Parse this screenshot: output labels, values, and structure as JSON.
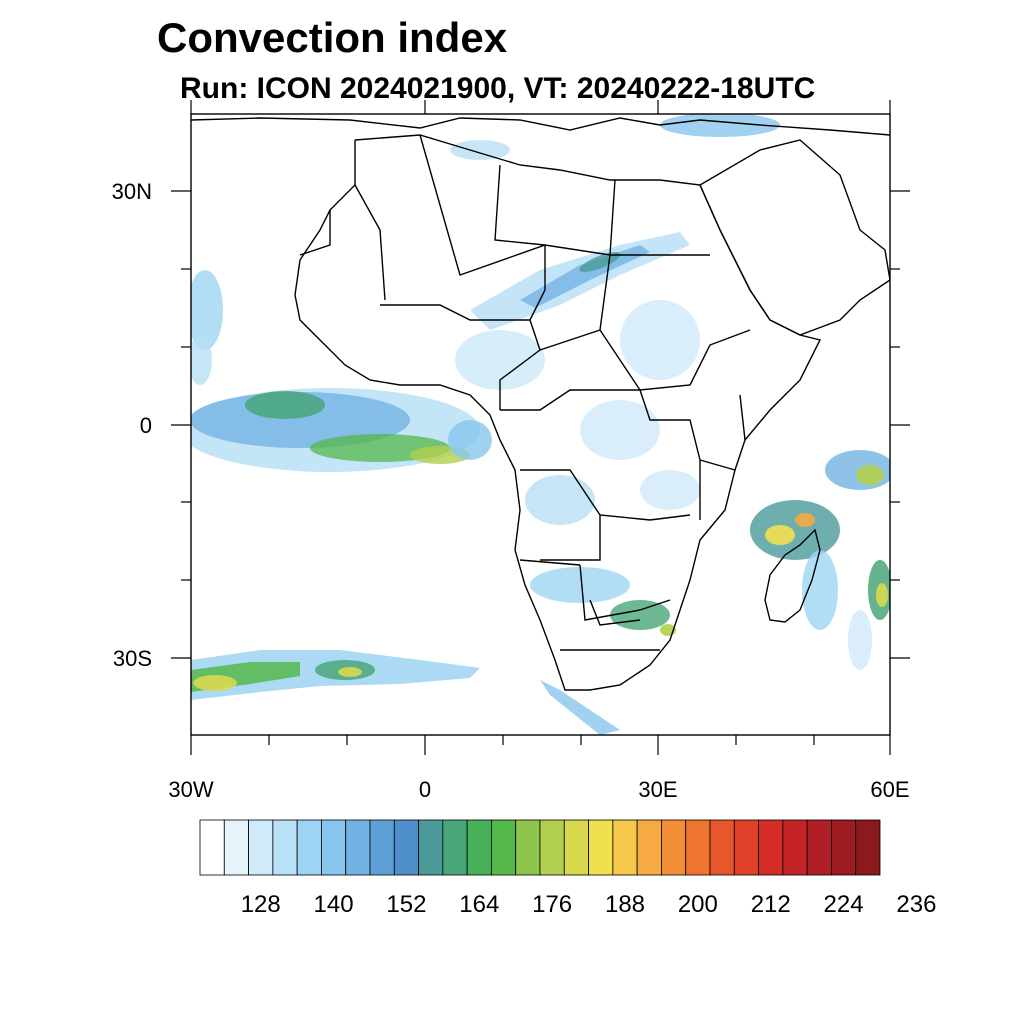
{
  "figure": {
    "title": "Convection index",
    "subtitle": "Run: ICON 2024021900,  VT: 20240222-18UTC"
  },
  "map": {
    "lon_labels": [
      "30W",
      "0",
      "30E",
      "60E"
    ],
    "lat_labels": [
      "30N",
      "0",
      "30S"
    ],
    "lon_range": [
      -30,
      60
    ],
    "lat_range": [
      -40,
      40
    ]
  },
  "colorbar": {
    "labels": [
      "128",
      "140",
      "152",
      "164",
      "176",
      "188",
      "200",
      "212",
      "224",
      "236"
    ],
    "colors": [
      "#ffffff",
      "#e6f4fc",
      "#cfeaf9",
      "#b8e0f6",
      "#9ed4f3",
      "#88c6ee",
      "#73b3e4",
      "#5f9fd8",
      "#4f8fcc",
      "#4a9a9a",
      "#49a67a",
      "#49b05a",
      "#55b84a",
      "#8fc44e",
      "#b3cf4f",
      "#d8d84e",
      "#f0e050",
      "#f6c84b",
      "#f6aa41",
      "#f28f36",
      "#ee742f",
      "#e6582b",
      "#de4028",
      "#d42c27",
      "#c42328",
      "#b01f26",
      "#9f1b22",
      "#8b1a1c"
    ]
  }
}
